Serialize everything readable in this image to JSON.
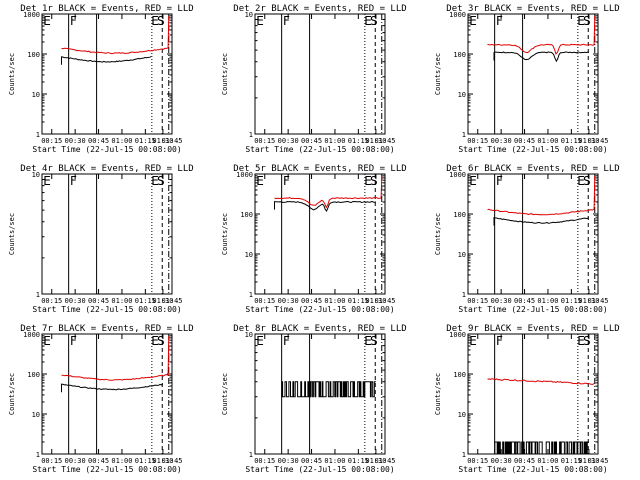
{
  "x_tick_labels": [
    "00:15",
    "00:30",
    "00:45",
    "01:00",
    "01:15",
    "01:30",
    "01:45"
  ],
  "x_label": "Start Time (22-Jul-15 00:08:00)",
  "y_label": "Counts/sec",
  "colors": {
    "events": "#000000",
    "lld": "#e00000"
  },
  "chart_data": [
    {
      "type": "line",
      "title": "Det 1r BLACK = Events, RED = LLD",
      "ylim": [
        1,
        1000
      ],
      "yticks": [
        "1",
        "10",
        "100",
        "1000"
      ],
      "markers": [
        "E",
        "F",
        "E",
        "S"
      ],
      "series": [
        {
          "name": "Events",
          "shape": "black1"
        },
        {
          "name": "LLD",
          "shape": "red1"
        }
      ]
    },
    {
      "type": "line",
      "title": "Det 2r BLACK = Events, RED = LLD",
      "ylim": [
        1,
        10
      ],
      "yticks": [
        "1",
        "10"
      ],
      "markers": [
        "E",
        "F",
        "E",
        "S"
      ],
      "series": []
    },
    {
      "type": "line",
      "title": "Det 3r BLACK = Events, RED = LLD",
      "ylim": [
        1,
        1000
      ],
      "yticks": [
        "1",
        "10",
        "100",
        "1000"
      ],
      "markers": [
        "E",
        "F",
        "E",
        "S"
      ],
      "series": [
        {
          "name": "Events",
          "shape": "black3"
        },
        {
          "name": "LLD",
          "shape": "red3"
        }
      ]
    },
    {
      "type": "line",
      "title": "Det 4r BLACK = Events, RED = LLD",
      "ylim": [
        1,
        10
      ],
      "yticks": [
        "1",
        "10"
      ],
      "markers": [
        "E",
        "F",
        "E",
        "S"
      ],
      "series": []
    },
    {
      "type": "line",
      "title": "Det 5r BLACK = Events, RED = LLD",
      "ylim": [
        1,
        1000
      ],
      "yticks": [
        "1",
        "10",
        "100",
        "1000"
      ],
      "markers": [
        "E",
        "F",
        "E",
        "S"
      ],
      "series": [
        {
          "name": "Events",
          "shape": "black5"
        },
        {
          "name": "LLD",
          "shape": "red5"
        }
      ]
    },
    {
      "type": "line",
      "title": "Det 6r BLACK = Events, RED = LLD",
      "ylim": [
        1,
        1000
      ],
      "yticks": [
        "1",
        "10",
        "100",
        "1000"
      ],
      "markers": [
        "E",
        "F",
        "E",
        "S"
      ],
      "series": [
        {
          "name": "Events",
          "shape": "black6"
        },
        {
          "name": "LLD",
          "shape": "red6"
        }
      ]
    },
    {
      "type": "line",
      "title": "Det 7r BLACK = Events, RED = LLD",
      "ylim": [
        1,
        1000
      ],
      "yticks": [
        "1",
        "10",
        "100",
        "1000"
      ],
      "markers": [
        "E",
        "F",
        "E",
        "S"
      ],
      "series": [
        {
          "name": "Events",
          "shape": "black7"
        },
        {
          "name": "LLD",
          "shape": "red7"
        }
      ]
    },
    {
      "type": "line",
      "title": "Det 8r BLACK = Events, RED = LLD",
      "ylim": [
        1,
        10
      ],
      "yticks": [
        "1",
        "10"
      ],
      "markers": [
        "E",
        "F",
        "E",
        "S"
      ],
      "series": [
        {
          "name": "Events",
          "shape": "noisy8"
        }
      ]
    },
    {
      "type": "line",
      "title": "Det 9r BLACK = Events, RED = LLD",
      "ylim": [
        1,
        1000
      ],
      "yticks": [
        "1",
        "10",
        "100",
        "1000"
      ],
      "markers": [
        "E",
        "F",
        "E",
        "S"
      ],
      "series": [
        {
          "name": "Events",
          "shape": "noisy9"
        },
        {
          "name": "LLD",
          "shape": "red9"
        }
      ]
    }
  ]
}
